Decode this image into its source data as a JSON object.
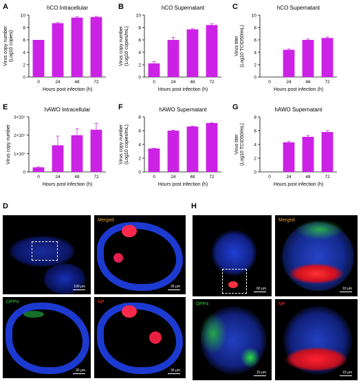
{
  "panel_letters": {
    "A": "A",
    "B": "B",
    "C": "C",
    "D": "D",
    "E": "E",
    "F": "F",
    "G": "G",
    "H": "H"
  },
  "bar_color": "#cc22e6",
  "chart_data": [
    {
      "id": "A",
      "type": "bar",
      "title": "hCO Intracellular",
      "xlabel": "Hours post infection (h)",
      "ylabel": [
        "Virus copy number",
        "(Log10 copies)"
      ],
      "categories": [
        "0",
        "24",
        "48",
        "72"
      ],
      "values": [
        6.0,
        8.7,
        9.6,
        9.7
      ],
      "errors": [
        0,
        0.1,
        0.15,
        0.1
      ],
      "ylim": [
        0,
        10
      ],
      "yticks": [
        0,
        2,
        4,
        6,
        8,
        10
      ],
      "ytick_labels": [
        "0",
        "2",
        "4",
        "6",
        "8",
        "10"
      ]
    },
    {
      "id": "B",
      "type": "bar",
      "title": "hCO Supernatant",
      "xlabel": "Hours post infection (h)",
      "ylabel": [
        "Virus copy number",
        "(Log10 copies/mL)"
      ],
      "categories": [
        "0",
        "24",
        "48",
        "72"
      ],
      "values": [
        2.2,
        6.0,
        7.7,
        8.4
      ],
      "errors": [
        0.3,
        0.4,
        0.1,
        0.2
      ],
      "ylim": [
        0,
        10
      ],
      "yticks": [
        0,
        2,
        4,
        6,
        8,
        10
      ],
      "ytick_labels": [
        "0",
        "2",
        "4",
        "6",
        "8",
        "10"
      ]
    },
    {
      "id": "C",
      "type": "bar",
      "title": "hCO Supernatant",
      "xlabel": "Hours post infection (h)",
      "ylabel": [
        "Virus titer",
        "(Log10 TCID50/mL)"
      ],
      "categories": [
        "0",
        "24",
        "48",
        "72"
      ],
      "values": [
        0,
        4.4,
        6.0,
        6.3
      ],
      "errors": [
        0,
        0.15,
        0.15,
        0.15
      ],
      "ylim": [
        0,
        10
      ],
      "yticks": [
        0,
        2,
        4,
        6,
        8,
        10
      ],
      "ytick_labels": [
        "0",
        "2",
        "4",
        "6",
        "8",
        "10"
      ]
    },
    {
      "id": "E",
      "type": "bar",
      "title": "hAWO Intracellular",
      "xlabel": "Hours post infection (h)",
      "ylabel": [
        "Virus copy number"
      ],
      "categories": [
        "0",
        "24",
        "48",
        "72"
      ],
      "values": [
        2500000,
        14500000,
        20000000,
        23000000
      ],
      "errors": [
        200000,
        5000000,
        3500000,
        3500000
      ],
      "ylim": [
        0,
        30000000
      ],
      "yticks": [
        0,
        10000000,
        20000000,
        30000000
      ],
      "ytick_labels": [
        "0",
        "1×10⁷",
        "2×10⁷",
        "3×10⁷"
      ]
    },
    {
      "id": "F",
      "type": "bar",
      "title": "hAWO Supernatant",
      "xlabel": "Hours post infection (h)",
      "ylabel": [
        "Virus copy number",
        "(Log10 copies/mL)"
      ],
      "categories": [
        "0",
        "24",
        "48",
        "72"
      ],
      "values": [
        3.4,
        6.0,
        6.6,
        7.1
      ],
      "errors": [
        0.05,
        0.05,
        0.05,
        0.05
      ],
      "ylim": [
        0,
        8
      ],
      "yticks": [
        0,
        2,
        4,
        6,
        8
      ],
      "ytick_labels": [
        "0",
        "2",
        "4",
        "6",
        "8"
      ]
    },
    {
      "id": "G",
      "type": "bar",
      "title": "hAWO Supernatant",
      "xlabel": "Hours post infection (h)",
      "ylabel": [
        "Virus titer",
        "(Log10 TCID50/mL)"
      ],
      "categories": [
        "0",
        "24",
        "48",
        "72"
      ],
      "values": [
        0,
        4.3,
        5.1,
        5.8
      ],
      "errors": [
        0,
        0.15,
        0.2,
        0.2
      ],
      "ylim": [
        0,
        8
      ],
      "yticks": [
        0,
        2,
        4,
        6,
        8
      ],
      "ytick_labels": [
        "0",
        "2",
        "4",
        "6",
        "8"
      ]
    }
  ],
  "micrographs": {
    "D1": {
      "scale": "100 μm"
    },
    "D2": {
      "label": "Merged",
      "label_color": "#e8a33c",
      "scale": "30 μm"
    },
    "D3": {
      "label": "DPP4",
      "label_color": "#27d23a",
      "scale": "30 μm"
    },
    "D4": {
      "label": "NP",
      "label_color": "#ff3030",
      "scale": "30 μm"
    },
    "H1": {
      "scale": "60 μm"
    },
    "H2": {
      "label": "Merged",
      "label_color": "#e8a33c",
      "scale": "10 μm"
    },
    "H3": {
      "label": "DPP4",
      "label_color": "#27d23a",
      "scale": "10 μm"
    },
    "H4": {
      "label": "NP",
      "label_color": "#ff3030",
      "scale": "10 μm"
    }
  }
}
